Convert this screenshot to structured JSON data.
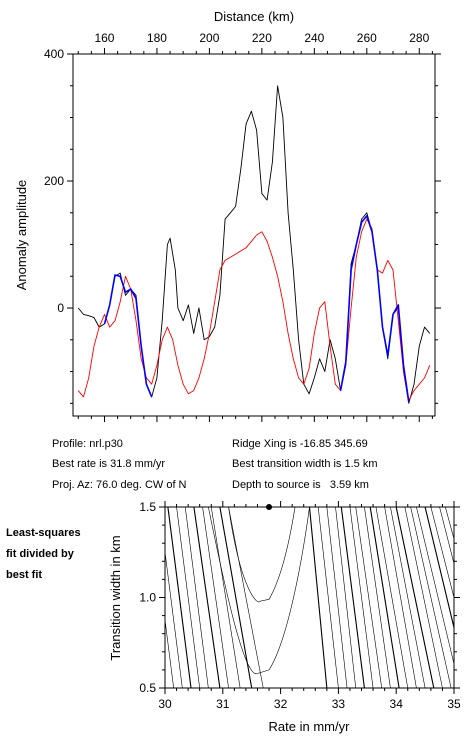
{
  "chart_data": [
    {
      "type": "line",
      "xlabel": "Distance (km)",
      "ylabel": "Anomaly amplitude",
      "xlim": [
        148,
        286
      ],
      "ylim": [
        -170,
        400
      ],
      "x_ticks": [
        160,
        180,
        200,
        220,
        240,
        260,
        280
      ],
      "y_ticks": [
        0,
        200,
        400
      ],
      "series": [
        {
          "color": "#000000",
          "points": [
            [
              150,
              0
            ],
            [
              152,
              -10
            ],
            [
              154,
              -12
            ],
            [
              156,
              -15
            ],
            [
              158,
              -30
            ],
            [
              160,
              -25
            ],
            [
              162,
              5
            ],
            [
              164,
              50
            ],
            [
              166,
              55
            ],
            [
              168,
              20
            ],
            [
              170,
              30
            ],
            [
              172,
              20
            ],
            [
              174,
              -60
            ],
            [
              176,
              -120
            ],
            [
              178,
              -140
            ],
            [
              180,
              -110
            ],
            [
              182,
              -20
            ],
            [
              184,
              100
            ],
            [
              185,
              110
            ],
            [
              187,
              60
            ],
            [
              188,
              0
            ],
            [
              190,
              -20
            ],
            [
              192,
              5
            ],
            [
              194,
              -40
            ],
            [
              196,
              0
            ],
            [
              198,
              -50
            ],
            [
              200,
              -45
            ],
            [
              202,
              -30
            ],
            [
              204,
              20
            ],
            [
              206,
              140
            ],
            [
              208,
              150
            ],
            [
              210,
              160
            ],
            [
              212,
              220
            ],
            [
              214,
              290
            ],
            [
              216,
              310
            ],
            [
              218,
              280
            ],
            [
              220,
              180
            ],
            [
              222,
              170
            ],
            [
              224,
              230
            ],
            [
              226,
              350
            ],
            [
              228,
              300
            ],
            [
              230,
              150
            ],
            [
              232,
              60
            ],
            [
              234,
              -50
            ],
            [
              236,
              -120
            ],
            [
              238,
              -135
            ],
            [
              240,
              -110
            ],
            [
              242,
              -80
            ],
            [
              244,
              -100
            ],
            [
              246,
              -50
            ],
            [
              248,
              -80
            ],
            [
              250,
              -130
            ],
            [
              252,
              -90
            ],
            [
              254,
              70
            ],
            [
              256,
              100
            ],
            [
              258,
              140
            ],
            [
              260,
              150
            ],
            [
              262,
              120
            ],
            [
              264,
              60
            ],
            [
              266,
              -30
            ],
            [
              268,
              -80
            ],
            [
              270,
              -10
            ],
            [
              272,
              0
            ],
            [
              274,
              -100
            ],
            [
              276,
              -150
            ],
            [
              278,
              -120
            ],
            [
              280,
              -60
            ],
            [
              282,
              -30
            ],
            [
              284,
              -40
            ]
          ]
        },
        {
          "color": "#ff0000",
          "points": [
            [
              150,
              -130
            ],
            [
              152,
              -140
            ],
            [
              154,
              -110
            ],
            [
              156,
              -60
            ],
            [
              158,
              -30
            ],
            [
              160,
              -10
            ],
            [
              162,
              -30
            ],
            [
              164,
              -20
            ],
            [
              166,
              10
            ],
            [
              168,
              50
            ],
            [
              170,
              30
            ],
            [
              172,
              -20
            ],
            [
              174,
              -80
            ],
            [
              176,
              -110
            ],
            [
              178,
              -120
            ],
            [
              180,
              -90
            ],
            [
              182,
              -50
            ],
            [
              184,
              -30
            ],
            [
              186,
              -50
            ],
            [
              188,
              -90
            ],
            [
              190,
              -120
            ],
            [
              192,
              -135
            ],
            [
              194,
              -130
            ],
            [
              196,
              -110
            ],
            [
              198,
              -80
            ],
            [
              200,
              -40
            ],
            [
              202,
              10
            ],
            [
              204,
              60
            ],
            [
              206,
              75
            ],
            [
              208,
              80
            ],
            [
              210,
              85
            ],
            [
              212,
              90
            ],
            [
              214,
              95
            ],
            [
              216,
              105
            ],
            [
              218,
              115
            ],
            [
              220,
              120
            ],
            [
              222,
              105
            ],
            [
              224,
              80
            ],
            [
              226,
              50
            ],
            [
              228,
              10
            ],
            [
              230,
              -40
            ],
            [
              232,
              -80
            ],
            [
              234,
              -110
            ],
            [
              236,
              -120
            ],
            [
              238,
              -95
            ],
            [
              240,
              -40
            ],
            [
              242,
              0
            ],
            [
              244,
              10
            ],
            [
              246,
              -60
            ],
            [
              248,
              -120
            ],
            [
              250,
              -130
            ],
            [
              252,
              -90
            ],
            [
              254,
              0
            ],
            [
              256,
              80
            ],
            [
              258,
              120
            ],
            [
              260,
              140
            ],
            [
              262,
              125
            ],
            [
              264,
              60
            ],
            [
              266,
              55
            ],
            [
              268,
              75
            ],
            [
              270,
              60
            ],
            [
              272,
              -20
            ],
            [
              274,
              -100
            ],
            [
              276,
              -145
            ],
            [
              278,
              -130
            ],
            [
              280,
              -120
            ],
            [
              282,
              -110
            ],
            [
              284,
              -90
            ]
          ]
        },
        {
          "color": "#0000ff",
          "points": [
            [
              160,
              -25
            ],
            [
              162,
              5
            ],
            [
              164,
              52
            ],
            [
              166,
              50
            ],
            [
              168,
              25
            ],
            [
              170,
              30
            ],
            [
              172,
              15
            ],
            [
              174,
              -60
            ],
            [
              176,
              -120
            ],
            [
              178,
              -140
            ]
          ]
        },
        {
          "color": "#0000ff",
          "points": [
            [
              250,
              -130
            ],
            [
              252,
              -85
            ],
            [
              254,
              60
            ],
            [
              256,
              100
            ],
            [
              258,
              135
            ],
            [
              260,
              145
            ],
            [
              262,
              120
            ],
            [
              264,
              60
            ],
            [
              266,
              -30
            ],
            [
              268,
              -75
            ],
            [
              270,
              -10
            ],
            [
              272,
              5
            ],
            [
              274,
              -90
            ],
            [
              276,
              -148
            ]
          ]
        }
      ]
    },
    {
      "type": "contour",
      "xlabel": "Rate in mm/yr",
      "ylabel": "Transition width in km",
      "xlim": [
        30,
        35
      ],
      "ylim": [
        0.5,
        1.5
      ],
      "x_ticks": [
        30,
        31,
        32,
        33,
        34,
        35
      ],
      "y_ticks": [
        0.5,
        1.0,
        1.5
      ],
      "best_fit_point": [
        31.8,
        1.5
      ]
    }
  ],
  "info": {
    "profile": "Profile: nrl.p30",
    "best_rate": "Best rate is 31.8 mm/yr",
    "proj_az": "Proj. Az: 76.0 deg. CW of N",
    "ridge_xing": "Ridge Xing is -16.85 345.69",
    "best_transition": "Best transition width is 1.5 km",
    "depth_to_source": "Depth to source is   3.59 km"
  },
  "side_note": {
    "line1": "Least-squares",
    "line2": "fit divided by",
    "line3": "best fit"
  }
}
